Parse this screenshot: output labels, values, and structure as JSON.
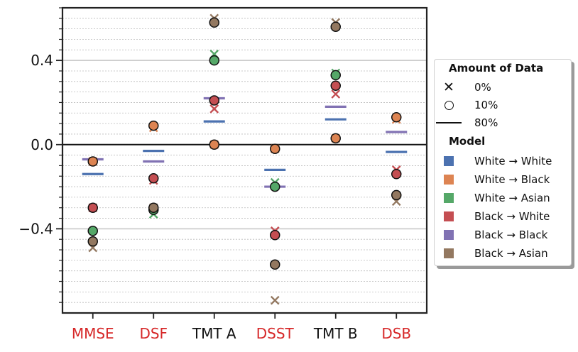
{
  "chart_data": {
    "type": "scatter",
    "categories": [
      "MMSE",
      "DSF",
      "TMT A",
      "DSST",
      "TMT B",
      "DSB"
    ],
    "category_colors": [
      "#d62728",
      "#d62728",
      "#111111",
      "#d62728",
      "#111111",
      "#d62728"
    ],
    "ylim": [
      -0.8,
      0.65
    ],
    "yticks": [
      -0.4,
      0.0,
      0.4
    ],
    "ytick_labels": [
      "−0.4",
      "0.0",
      "0.4"
    ],
    "legend_position": "right",
    "series": [
      {
        "name": "White → White",
        "color": "#4c72b0",
        "cross": [
          null,
          null,
          null,
          null,
          null,
          null
        ],
        "circle": [
          null,
          null,
          null,
          null,
          null,
          null
        ],
        "dash": [
          -0.14,
          -0.03,
          0.11,
          -0.12,
          0.12,
          -0.035
        ]
      },
      {
        "name": "White → Black",
        "color": "#dd8452",
        "cross": [
          -0.08,
          0.08,
          0.0,
          -0.02,
          0.03,
          0.12
        ],
        "circle": [
          -0.08,
          0.09,
          0.0,
          -0.02,
          0.03,
          0.13
        ],
        "dash": [
          null,
          null,
          null,
          null,
          null,
          null
        ]
      },
      {
        "name": "White → Asian",
        "color": "#55a868",
        "cross": [
          null,
          -0.33,
          0.43,
          -0.18,
          0.34,
          null
        ],
        "circle": [
          -0.41,
          -0.31,
          0.4,
          -0.2,
          0.33,
          null
        ],
        "dash": [
          null,
          null,
          null,
          null,
          null,
          null
        ]
      },
      {
        "name": "Black → White",
        "color": "#c44e52",
        "cross": [
          -0.3,
          -0.17,
          0.17,
          -0.41,
          0.24,
          -0.12
        ],
        "circle": [
          -0.3,
          -0.16,
          0.21,
          -0.43,
          0.28,
          -0.14
        ],
        "dash": [
          null,
          null,
          null,
          null,
          null,
          null
        ]
      },
      {
        "name": "Black → Black",
        "color": "#8172b3",
        "cross": [
          null,
          null,
          null,
          null,
          null,
          null
        ],
        "circle": [
          null,
          null,
          null,
          null,
          null,
          null
        ],
        "dash": [
          -0.07,
          -0.08,
          0.22,
          -0.2,
          0.18,
          0.06
        ]
      },
      {
        "name": "Black → Asian",
        "color": "#937860",
        "cross": [
          -0.49,
          -0.3,
          0.6,
          -0.74,
          0.58,
          -0.27
        ],
        "circle": [
          -0.46,
          -0.3,
          0.58,
          -0.57,
          0.56,
          -0.24
        ],
        "dash": [
          null,
          null,
          null,
          null,
          null,
          null
        ]
      }
    ]
  },
  "legend": {
    "amount_title": "Amount of Data",
    "amount_items": [
      "0%",
      "10%",
      "80%"
    ],
    "model_title": "Model",
    "model_items": [
      "White → White",
      "White → Black",
      "White → Asian",
      "Black → White",
      "Black → Black",
      "Black → Asian"
    ],
    "model_colors": [
      "#4c72b0",
      "#dd8452",
      "#55a868",
      "#c44e52",
      "#8172b3",
      "#937860"
    ]
  }
}
